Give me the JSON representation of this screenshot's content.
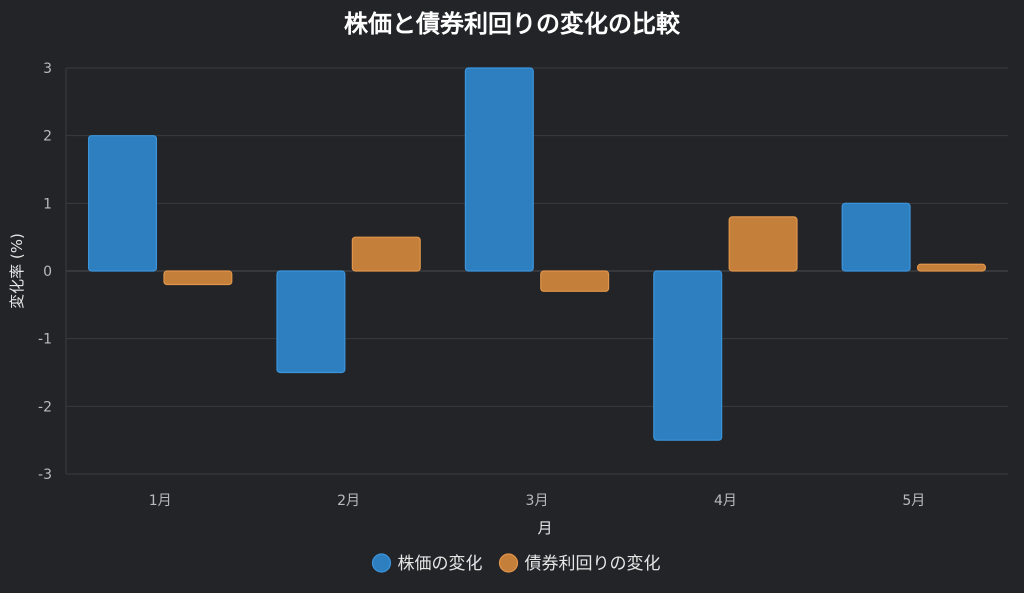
{
  "chart_data": {
    "type": "bar",
    "title": "株価と債券利回りの変化の比較",
    "xlabel": "月",
    "ylabel": "変化率 (%)",
    "categories": [
      "1月",
      "2月",
      "3月",
      "4月",
      "5月"
    ],
    "ylim": [
      -3,
      3
    ],
    "yticks": [
      3,
      2,
      1,
      0,
      -1,
      -2,
      -3
    ],
    "grid": true,
    "legend_position": "bottom",
    "series": [
      {
        "name": "株価の変化",
        "values": [
          2,
          -1.5,
          3,
          -2.5,
          1
        ],
        "color": "#2e7fc0",
        "stroke": "#3b95dd"
      },
      {
        "name": "債券利回りの変化",
        "values": [
          -0.2,
          0.5,
          -0.3,
          0.8,
          0.1
        ],
        "color": "#c47f3a",
        "stroke": "#e0954a"
      }
    ]
  }
}
